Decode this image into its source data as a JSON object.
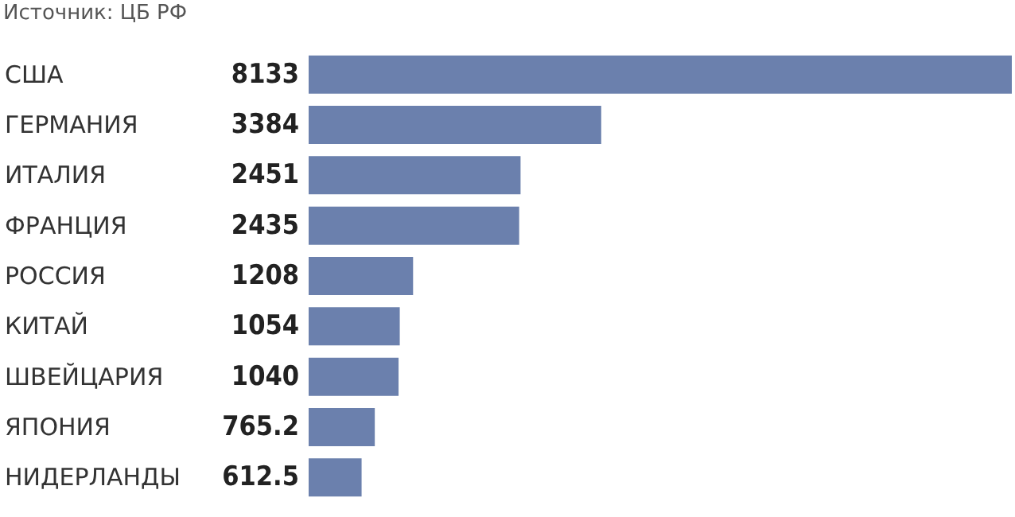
{
  "chart_data": {
    "type": "bar",
    "orientation": "horizontal",
    "annotations": [
      "Источник: ЦБ РФ"
    ],
    "categories": [
      "США",
      "ГЕРМАНИЯ",
      "ИТАЛИЯ",
      "ФРАНЦИЯ",
      "РОССИЯ",
      "КИТАЙ",
      "ШВЕЙЦАРИЯ",
      "ЯПОНИЯ",
      "НИДЕРЛАНДЫ"
    ],
    "values": [
      8133,
      3384,
      2451,
      2435,
      1208,
      1054,
      1040,
      765.2,
      612.5
    ],
    "color": "#6b80ad",
    "data_labels": true
  }
}
